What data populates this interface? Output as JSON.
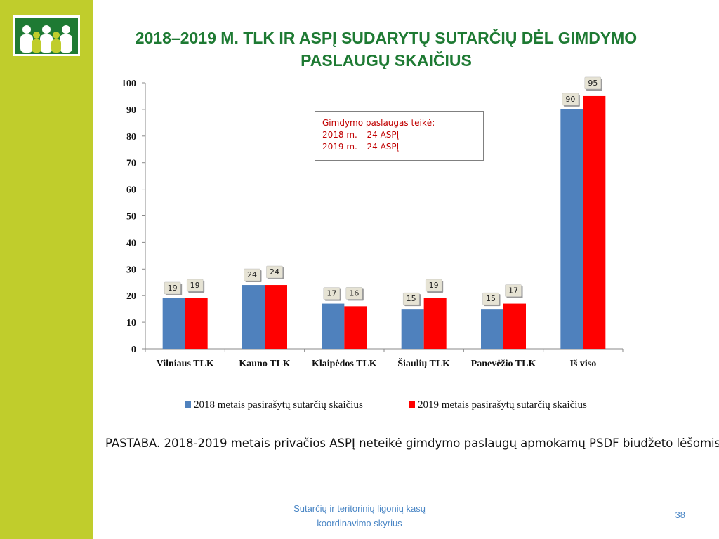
{
  "slide": {
    "title_line1": "2018–2019 M. TLK IR ASPĮ SUDARYTŲ SUTARČIŲ DĖL GIMDYMO",
    "title_line2": "PASLAUGŲ SKAIČIUS",
    "note": "PASTABA. 2018-2019 metais privačios ASPĮ neteikė gimdymo paslaugų apmokamų PSDF biudžeto lėšomis",
    "footer_line1": "Sutarčių ir teritorinių ligonių kasų",
    "footer_line2": "koordinavimo skyrius",
    "page_number": "38"
  },
  "annotation": {
    "line1": "Gimdymo paslaugas teikė:",
    "line2": "2018 m. – 24 ASPĮ",
    "line3": "2019 m. – 24 ASPĮ"
  },
  "colors": {
    "accent_bar": "#c0cd2c",
    "title": "#1e7a33",
    "series_2018": "#4f81bd",
    "series_2019": "#ff0000",
    "annotation_text": "#c00000",
    "footer": "#4a86c5"
  },
  "chart_data": {
    "type": "bar",
    "categories": [
      "Vilniaus TLK",
      "Kauno TLK",
      "Klaipėdos TLK",
      "Šiaulių TLK",
      "Panevėžio TLK",
      "Iš viso"
    ],
    "series": [
      {
        "name": "2018 metais pasirašytų sutarčių skaičius",
        "values": [
          19,
          24,
          17,
          15,
          15,
          90
        ],
        "color": "#4f81bd"
      },
      {
        "name": "2019 metais pasirašytų sutarčių skaičius",
        "values": [
          19,
          24,
          16,
          19,
          17,
          95
        ],
        "color": "#ff0000"
      }
    ],
    "ylim": [
      0,
      100
    ],
    "yticks": [
      0,
      10,
      20,
      30,
      40,
      50,
      60,
      70,
      80,
      90,
      100
    ],
    "grid": false,
    "legend": "bottom",
    "data_labels": true
  }
}
